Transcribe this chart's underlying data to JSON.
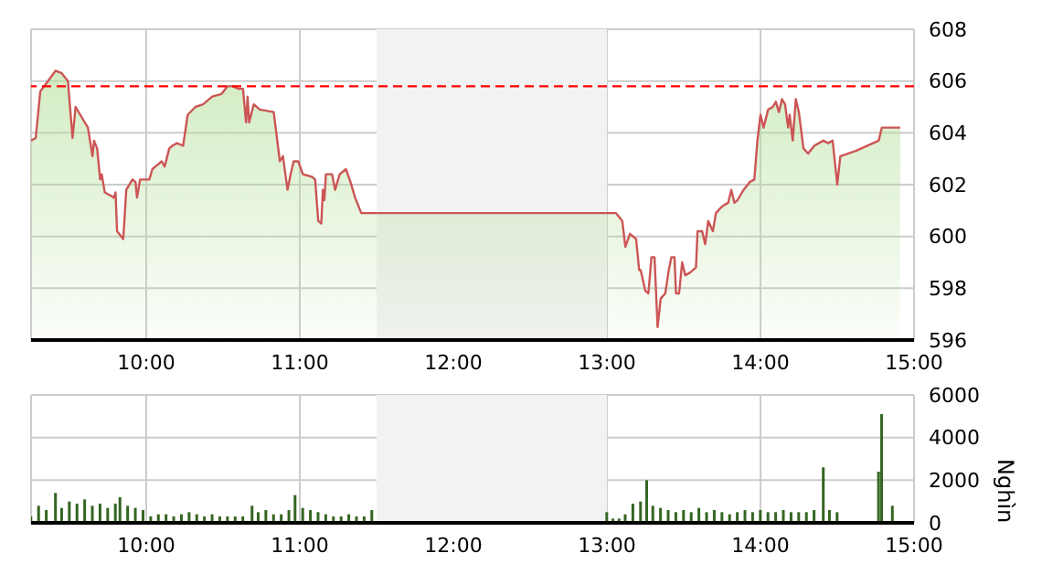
{
  "chart_data": [
    {
      "type": "area",
      "xlim": [
        9.25,
        15
      ],
      "ylim": [
        596,
        608
      ],
      "yticks": [
        596,
        598,
        600,
        602,
        604,
        606,
        608
      ],
      "xticks": [
        {
          "value": 10,
          "label": "10:00"
        },
        {
          "value": 11,
          "label": "11:00"
        },
        {
          "value": 12,
          "label": "12:00"
        },
        {
          "value": 13,
          "label": "13:00"
        },
        {
          "value": 14,
          "label": "14:00"
        },
        {
          "value": 15,
          "label": "15:00"
        }
      ],
      "grid": true,
      "bands": [
        {
          "axis": "x",
          "from": 11.5,
          "to": 13,
          "color": "#f2f2f2"
        }
      ],
      "ref_lines": [
        {
          "axis": "y",
          "value": 605.8,
          "color": "#ff0000",
          "line_style": "dashed"
        }
      ],
      "series": [
        {
          "color": "#b5e09a",
          "x": [
            9.25,
            9.28,
            9.31,
            9.36,
            9.41,
            9.45,
            9.49,
            9.52,
            9.54,
            9.57,
            9.62,
            9.65,
            9.66,
            9.68,
            9.7,
            9.71,
            9.73,
            9.79,
            9.8,
            9.81,
            9.85,
            9.87,
            9.91,
            9.93,
            9.94,
            9.96,
            10.02,
            10.04,
            10.08,
            10.1,
            10.12,
            10.15,
            10.17,
            10.2,
            10.24,
            10.27,
            10.32,
            10.37,
            10.43,
            10.49,
            10.53,
            10.56,
            10.6,
            10.63,
            10.65,
            10.66,
            10.67,
            10.7,
            10.74,
            10.83,
            10.87,
            10.89,
            10.92,
            10.94,
            10.96,
            10.99,
            11.02,
            11.08,
            11.1,
            11.12,
            11.14,
            11.15,
            11.16,
            11.17,
            11.21,
            11.23,
            11.26,
            11.3,
            11.33,
            11.36,
            11.4,
            13.0,
            13.06,
            13.1,
            13.12,
            13.15,
            13.19,
            13.21,
            13.22,
            13.25,
            13.27,
            13.29,
            13.31,
            13.33,
            13.35,
            13.38,
            13.4,
            13.42,
            13.44,
            13.45,
            13.47,
            13.49,
            13.51,
            13.54,
            13.58,
            13.59,
            13.62,
            13.64,
            13.66,
            13.69,
            13.71,
            13.74,
            13.76,
            13.79,
            13.81,
            13.83,
            13.85,
            13.89,
            13.93,
            13.96,
            13.98,
            14.0,
            14.02,
            14.05,
            14.08,
            14.1,
            14.12,
            14.14,
            14.16,
            14.18,
            14.19,
            14.21,
            14.23,
            14.25,
            14.28,
            14.31,
            14.35,
            14.38,
            14.41,
            14.44,
            14.47,
            14.5,
            14.52,
            14.62,
            14.77,
            14.79,
            14.91
          ],
          "values": [
            603.7,
            603.8,
            605.6,
            606.0,
            606.4,
            606.3,
            606.0,
            603.8,
            605.0,
            604.7,
            604.2,
            603.1,
            603.7,
            603.4,
            602.2,
            602.4,
            601.7,
            601.5,
            601.7,
            600.2,
            599.9,
            601.8,
            602.2,
            602.1,
            601.5,
            602.2,
            602.2,
            602.6,
            602.8,
            602.9,
            602.7,
            603.4,
            603.5,
            603.6,
            603.5,
            604.7,
            605.0,
            605.1,
            605.4,
            605.5,
            605.8,
            605.8,
            605.7,
            605.7,
            604.4,
            605.4,
            604.4,
            605.1,
            604.9,
            604.8,
            602.9,
            603.1,
            601.8,
            602.4,
            602.9,
            602.9,
            602.4,
            602.3,
            602.2,
            600.6,
            600.5,
            601.8,
            601.4,
            602.4,
            602.4,
            601.8,
            602.4,
            602.6,
            602.1,
            601.5,
            600.9,
            600.9,
            600.9,
            600.6,
            599.6,
            600.1,
            599.9,
            598.7,
            598.7,
            597.9,
            597.8,
            599.2,
            599.2,
            596.5,
            597.6,
            597.8,
            598.6,
            599.2,
            599.2,
            597.8,
            597.8,
            599.0,
            598.5,
            598.6,
            598.8,
            600.2,
            600.2,
            599.7,
            600.6,
            600.2,
            600.9,
            601.1,
            601.2,
            601.3,
            601.8,
            601.3,
            601.4,
            601.8,
            602.1,
            602.2,
            603.7,
            604.7,
            604.2,
            604.9,
            605.0,
            605.2,
            604.8,
            605.3,
            605.1,
            604.2,
            604.7,
            603.7,
            605.3,
            604.8,
            603.4,
            603.2,
            603.5,
            603.6,
            603.7,
            603.6,
            603.7,
            602.0,
            603.1,
            603.3,
            603.7,
            604.2,
            604.2
          ]
        }
      ]
    },
    {
      "type": "bar",
      "xlim": [
        9.25,
        15
      ],
      "ylim": [
        0,
        6000
      ],
      "yticks": [
        0,
        2000,
        4000,
        6000
      ],
      "y2label": "Nghìn",
      "xticks": [
        {
          "value": 10,
          "label": "10:00"
        },
        {
          "value": 11,
          "label": "11:00"
        },
        {
          "value": 12,
          "label": "12:00"
        },
        {
          "value": 13,
          "label": "13:00"
        },
        {
          "value": 14,
          "label": "14:00"
        },
        {
          "value": 15,
          "label": "15:00"
        }
      ],
      "grid": true,
      "bands": [
        {
          "axis": "x",
          "from": 11.5,
          "to": 13,
          "color": "#f2f2f2"
        }
      ],
      "series": [
        {
          "color": "#336622",
          "x": [
            9.25,
            9.3,
            9.35,
            9.41,
            9.45,
            9.5,
            9.55,
            9.6,
            9.65,
            9.7,
            9.75,
            9.8,
            9.83,
            9.88,
            9.93,
            9.98,
            10.03,
            10.08,
            10.13,
            10.18,
            10.23,
            10.28,
            10.33,
            10.38,
            10.43,
            10.48,
            10.53,
            10.58,
            10.63,
            10.69,
            10.73,
            10.78,
            10.83,
            10.88,
            10.93,
            10.97,
            11.02,
            11.07,
            11.12,
            11.17,
            11.22,
            11.27,
            11.32,
            11.37,
            11.42,
            11.47,
            13.0,
            13.04,
            13.08,
            13.12,
            13.17,
            13.22,
            13.26,
            13.3,
            13.35,
            13.4,
            13.45,
            13.5,
            13.55,
            13.6,
            13.65,
            13.7,
            13.75,
            13.8,
            13.85,
            13.9,
            13.95,
            14.0,
            14.05,
            14.1,
            14.15,
            14.2,
            14.25,
            14.3,
            14.35,
            14.41,
            14.45,
            14.5,
            14.77,
            14.79,
            14.86
          ],
          "values": [
            300,
            800,
            600,
            1400,
            700,
            1000,
            900,
            1100,
            800,
            900,
            700,
            900,
            1200,
            800,
            700,
            600,
            300,
            400,
            400,
            300,
            400,
            500,
            400,
            300,
            400,
            300,
            300,
            300,
            300,
            800,
            500,
            600,
            400,
            400,
            600,
            1300,
            700,
            600,
            500,
            400,
            300,
            300,
            400,
            300,
            300,
            600,
            500,
            200,
            200,
            400,
            900,
            1000,
            2000,
            800,
            700,
            600,
            500,
            600,
            500,
            700,
            500,
            600,
            500,
            400,
            500,
            600,
            500,
            600,
            500,
            500,
            600,
            500,
            500,
            500,
            600,
            2600,
            600,
            500,
            2400,
            5100,
            800
          ]
        }
      ]
    }
  ]
}
